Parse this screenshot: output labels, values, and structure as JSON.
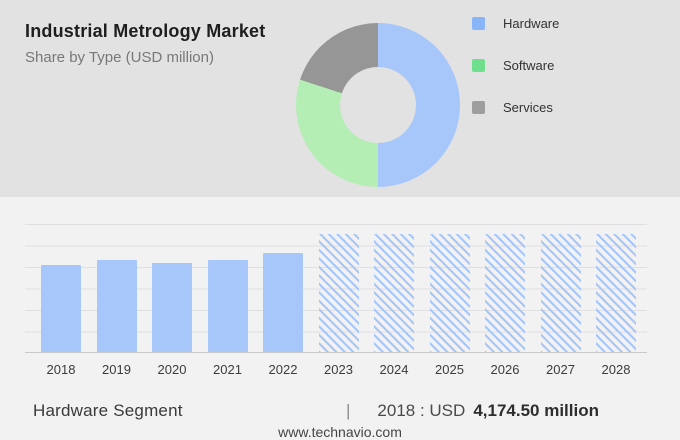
{
  "header": {
    "title": "Industrial Metrology Market",
    "subtitle": "Share by Type (USD million)"
  },
  "legend": {
    "items": [
      {
        "label": "Hardware",
        "color": "#8ab4f8"
      },
      {
        "label": "Software",
        "color": "#6fdf8e"
      },
      {
        "label": "Services",
        "color": "#9e9e9e"
      }
    ]
  },
  "colors": {
    "top_panel_bg": "#e2e2e2",
    "bottom_panel_bg": "#f2f2f3",
    "bar_blue": "#a7c6f9",
    "donut_blue": "#a7c6f9",
    "donut_green": "#b4eeb4",
    "donut_gray": "#969696",
    "gridline": "#e0e0e3",
    "axis": "#c9c9c9"
  },
  "chart_data": [
    {
      "type": "pie",
      "variant": "donut",
      "title": "Share by Type (USD million)",
      "labels": [
        "Hardware",
        "Software",
        "Services"
      ],
      "values_pct": [
        50,
        30,
        20
      ],
      "colors": [
        "#a7c6f9",
        "#b4eeb4",
        "#969696"
      ],
      "start_angle_deg": 0,
      "direction": "clockwise",
      "legend_position": "right"
    },
    {
      "type": "bar",
      "title": "Hardware Segment (USD million), 2018-2028",
      "categories": [
        "2018",
        "2019",
        "2020",
        "2021",
        "2022",
        "2023",
        "2024",
        "2025",
        "2026",
        "2027",
        "2028"
      ],
      "bars": [
        {
          "year": "2018",
          "value": 4174.5,
          "style": "solid"
        },
        {
          "year": "2019",
          "value": 4410,
          "style": "solid"
        },
        {
          "year": "2020",
          "value": 4270,
          "style": "solid"
        },
        {
          "year": "2021",
          "value": 4410,
          "style": "solid"
        },
        {
          "year": "2022",
          "value": 4740,
          "style": "solid"
        },
        {
          "year": "2023",
          "value": null,
          "style": "hatched"
        },
        {
          "year": "2024",
          "value": null,
          "style": "hatched"
        },
        {
          "year": "2025",
          "value": null,
          "style": "hatched"
        },
        {
          "year": "2026",
          "value": null,
          "style": "hatched"
        },
        {
          "year": "2027",
          "value": null,
          "style": "hatched"
        },
        {
          "year": "2028",
          "value": null,
          "style": "hatched"
        }
      ],
      "ylim": [
        0,
        6100
      ],
      "y_axis_labels": false,
      "grid": "horizontal",
      "hatched_height_pct": 92.3,
      "note": "Only 2018 value labeled on screen (USD 4,174.50 million); 2019-2022 estimated from bar heights; 2023-2028 shown as hatched forecast columns"
    }
  ],
  "footer": {
    "segment_label": "Hardware Segment",
    "separator": "|",
    "value_prefix": "2018 : USD",
    "value_bold": "4,174.50 million",
    "website": "www.technavio.com"
  }
}
